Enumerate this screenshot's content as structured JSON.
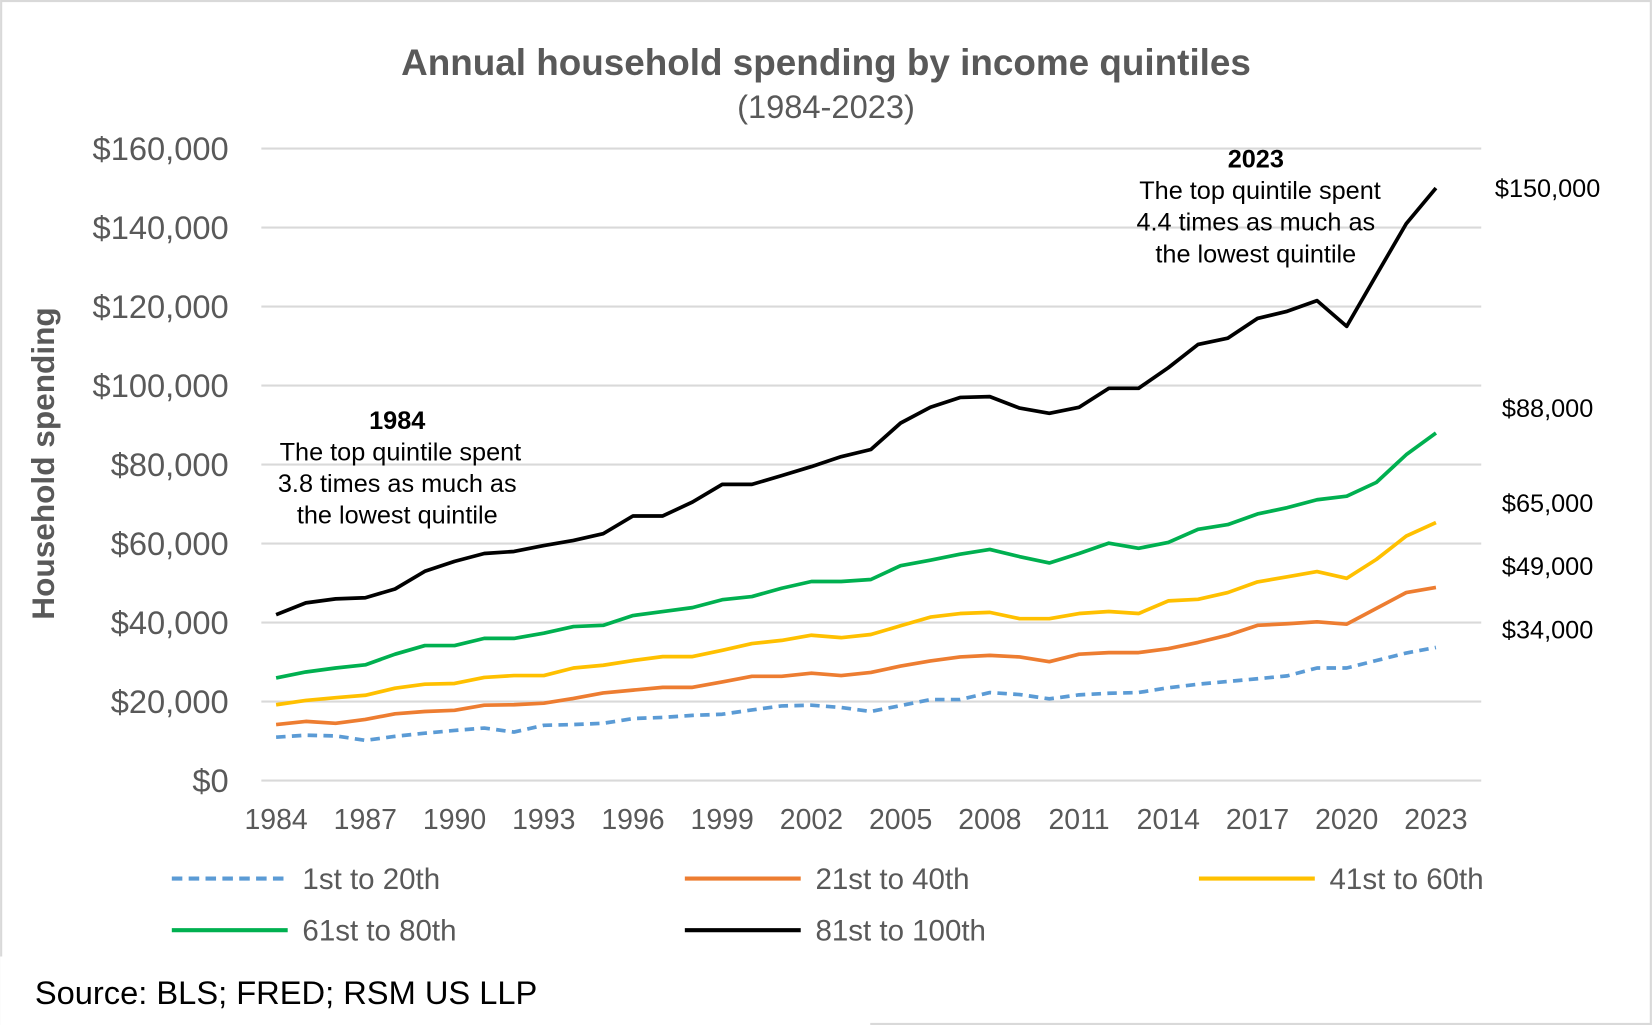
{
  "chart_data": {
    "type": "line",
    "title": "Annual household spending by income quintiles",
    "subtitle": "(1984-2023)",
    "ylabel": "Household spending",
    "xlabel": "",
    "ylim": [
      0,
      160000
    ],
    "yticks": [
      0,
      20000,
      40000,
      60000,
      80000,
      100000,
      120000,
      140000,
      160000
    ],
    "ytick_labels": [
      "$0",
      "$20,000",
      "$40,000",
      "$60,000",
      "$80,000",
      "$100,000",
      "$120,000",
      "$140,000",
      "$160,000"
    ],
    "xtick_labels": [
      "1984",
      "1987",
      "1990",
      "1993",
      "1996",
      "1999",
      "2002",
      "2005",
      "2008",
      "2011",
      "2014",
      "2017",
      "2020",
      "2023"
    ],
    "grid": true,
    "legend_position": "bottom",
    "x": [
      1984,
      1985,
      1986,
      1987,
      1988,
      1989,
      1990,
      1991,
      1992,
      1993,
      1994,
      1995,
      1996,
      1997,
      1998,
      1999,
      2000,
      2001,
      2002,
      2003,
      2004,
      2005,
      2006,
      2007,
      2008,
      2009,
      2010,
      2011,
      2012,
      2013,
      2014,
      2015,
      2016,
      2017,
      2018,
      2019,
      2020,
      2021,
      2022,
      2023
    ],
    "series": [
      {
        "name": "1st to 20th",
        "color": "#5B9BD5",
        "dashed": true,
        "values": [
          11000,
          11500,
          11300,
          10200,
          11200,
          12000,
          12700,
          13300,
          12300,
          14000,
          14200,
          14500,
          15700,
          16000,
          16500,
          16800,
          17900,
          18900,
          19100,
          18500,
          17500,
          19000,
          20500,
          20500,
          22300,
          21800,
          20700,
          21700,
          22100,
          22300,
          23500,
          24400,
          25100,
          25800,
          26500,
          28500,
          28500,
          30400,
          32300,
          33700
        ]
      },
      {
        "name": "21st to 40th",
        "color": "#ED7D31",
        "dashed": false,
        "values": [
          14200,
          15000,
          14500,
          15500,
          16900,
          17500,
          17800,
          19100,
          19200,
          19600,
          20800,
          22200,
          22900,
          23600,
          23600,
          25000,
          26400,
          26400,
          27200,
          26600,
          27400,
          29000,
          30300,
          31300,
          31700,
          31300,
          30100,
          32000,
          32400,
          32400,
          33400,
          35000,
          36800,
          39300,
          39700,
          40200,
          39600,
          43600,
          47600,
          48900
        ]
      },
      {
        "name": "41st to 60th",
        "color": "#FFC000",
        "dashed": false,
        "values": [
          19200,
          20300,
          21000,
          21600,
          23400,
          24400,
          24600,
          26100,
          26600,
          26600,
          28500,
          29200,
          30400,
          31400,
          31400,
          33000,
          34700,
          35500,
          36800,
          36200,
          37000,
          39200,
          41400,
          42300,
          42600,
          41000,
          41000,
          42300,
          42800,
          42300,
          45500,
          45900,
          47600,
          50300,
          51600,
          52900,
          51200,
          56000,
          61900,
          65300
        ]
      },
      {
        "name": "61st to 80th",
        "color": "#00B050",
        "dashed": false,
        "values": [
          26000,
          27500,
          28500,
          29300,
          32000,
          34200,
          34200,
          36000,
          36000,
          37300,
          39000,
          39300,
          41800,
          42800,
          43800,
          45800,
          46600,
          48700,
          50400,
          50400,
          50900,
          54400,
          55800,
          57300,
          58500,
          56700,
          55100,
          57500,
          60100,
          58800,
          60300,
          63600,
          64800,
          67500,
          69100,
          71100,
          72000,
          75500,
          82500,
          88000
        ]
      },
      {
        "name": "81st to 100th",
        "color": "#000000",
        "dashed": false,
        "values": [
          42000,
          45000,
          46000,
          46300,
          48500,
          53000,
          55500,
          57500,
          58000,
          59500,
          60800,
          62500,
          67000,
          67000,
          70500,
          75000,
          75000,
          77200,
          79500,
          82000,
          83800,
          90500,
          94500,
          97000,
          97200,
          94300,
          93000,
          94500,
          99300,
          99300,
          104500,
          110400,
          112000,
          117000,
          118800,
          121500,
          115000,
          128000,
          141000,
          150000
        ]
      }
    ],
    "end_labels": [
      {
        "series": "81st to 100th",
        "text": "$150,000"
      },
      {
        "series": "61st to 80th",
        "text": "$88,000"
      },
      {
        "series": "41st to 60th",
        "text": "$65,000"
      },
      {
        "series": "21st to 40th",
        "text": "$49,000"
      },
      {
        "series": "1st to 20th",
        "text": "$34,000"
      }
    ],
    "annotations": [
      {
        "heading": "1984",
        "lines": [
          "The top quintile spent",
          "3.8 times as much as",
          "the lowest quintile"
        ]
      },
      {
        "heading": "2023",
        "lines": [
          "The top quintile spent",
          "4.4 times as much as",
          "the lowest quintile"
        ]
      }
    ],
    "source": "Source: BLS; FRED; RSM US LLP"
  }
}
